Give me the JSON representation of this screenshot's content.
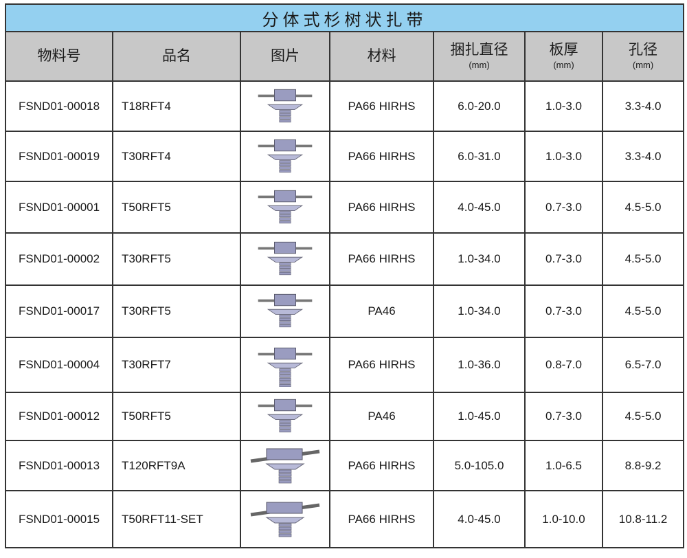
{
  "title": "分体式杉树状扎带",
  "headers": [
    {
      "label": "物料号",
      "unit": ""
    },
    {
      "label": "品名",
      "unit": ""
    },
    {
      "label": "图片",
      "unit": ""
    },
    {
      "label": "材料",
      "unit": ""
    },
    {
      "label": "捆扎直径",
      "unit": "(mm)"
    },
    {
      "label": "板厚",
      "unit": "(mm)"
    },
    {
      "label": "孔径",
      "unit": "(mm)"
    }
  ],
  "rows": [
    {
      "code": "FSND01-00018",
      "name": "T18RFT4",
      "material": "PA66 HIRHS",
      "bundle": "6.0-20.0",
      "panel": "1.0-3.0",
      "hole": "3.3-4.0",
      "icon": "fir-tree-tie-small"
    },
    {
      "code": "FSND01-00019",
      "name": "T30RFT4",
      "material": "PA66 HIRHS",
      "bundle": "6.0-31.0",
      "panel": "1.0-3.0",
      "hole": "3.3-4.0",
      "icon": "fir-tree-tie-small"
    },
    {
      "code": "FSND01-00001",
      "name": "T50RFT5",
      "material": "PA66 HIRHS",
      "bundle": "4.0-45.0",
      "panel": "0.7-3.0",
      "hole": "4.5-5.0",
      "icon": "fir-tree-tie"
    },
    {
      "code": "FSND01-00002",
      "name": "T30RFT5",
      "material": "PA66 HIRHS",
      "bundle": "1.0-34.0",
      "panel": "0.7-3.0",
      "hole": "4.5-5.0",
      "icon": "fir-tree-tie"
    },
    {
      "code": "FSND01-00017",
      "name": "T30RFT5",
      "material": "PA46",
      "bundle": "1.0-34.0",
      "panel": "0.7-3.0",
      "hole": "4.5-5.0",
      "icon": "fir-tree-tie"
    },
    {
      "code": "FSND01-00004",
      "name": "T30RFT7",
      "material": "PA66 HIRHS",
      "bundle": "1.0-36.0",
      "panel": "0.8-7.0",
      "hole": "6.5-7.0",
      "icon": "fir-tree-tie-long"
    },
    {
      "code": "FSND01-00012",
      "name": "T50RFT5",
      "material": "PA46",
      "bundle": "1.0-45.0",
      "panel": "0.7-3.0",
      "hole": "4.5-5.0",
      "icon": "fir-tree-tie"
    },
    {
      "code": "FSND01-00013",
      "name": "T120RFT9A",
      "material": "PA66 HIRHS",
      "bundle": "5.0-105.0",
      "panel": "1.0-6.5",
      "hole": "8.8-9.2",
      "icon": "fir-tree-tie-wide"
    },
    {
      "code": "FSND01-00015",
      "name": "T50RFT11-SET",
      "material": "PA66 HIRHS",
      "bundle": "4.0-45.0",
      "panel": "1.0-10.0",
      "hole": "10.8-11.2",
      "icon": "fir-tree-tie-wide"
    }
  ],
  "colors": {
    "title_bg": "#94d0f0",
    "header_bg": "#c8c8c8",
    "part": "#9a9cc0"
  }
}
